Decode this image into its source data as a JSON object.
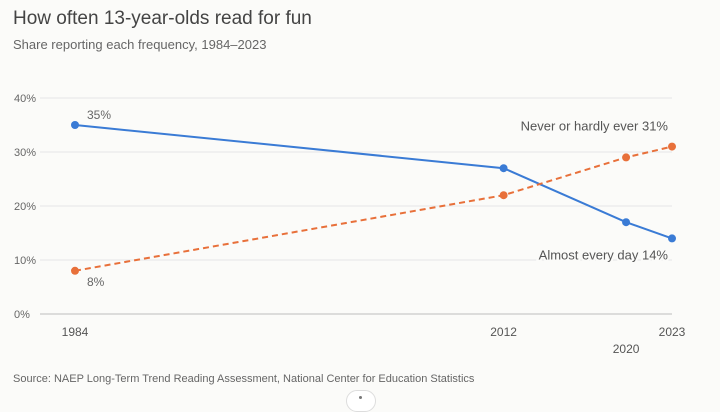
{
  "chart_data": {
    "type": "line",
    "title": "How often 13-year-olds read for fun",
    "subtitle": "Share reporting each frequency, 1984–2023",
    "source": "Source: NAEP Long-Term Trend Reading Assessment, National Center for Education Statistics",
    "x": [
      1984,
      2012,
      2020,
      2023
    ],
    "xlim": [
      1984,
      2023
    ],
    "x_ticks": [
      "1984",
      "2012",
      "2020",
      "2023"
    ],
    "ylim": [
      0,
      40
    ],
    "y_ticks": [
      "0%",
      "10%",
      "20%",
      "30%",
      "40%"
    ],
    "grid": true,
    "series": [
      {
        "name": "Almost every day",
        "values": [
          35,
          27,
          17,
          14
        ],
        "color": "#3a7bd5",
        "style": "solid",
        "start_label": "35%",
        "end_label": "Almost every day 14%"
      },
      {
        "name": "Never or hardly ever",
        "values": [
          8,
          22,
          29,
          31
        ],
        "color": "#e8703a",
        "style": "dashed",
        "start_label": "8%",
        "end_label": "Never or hardly ever 31%"
      }
    ]
  }
}
